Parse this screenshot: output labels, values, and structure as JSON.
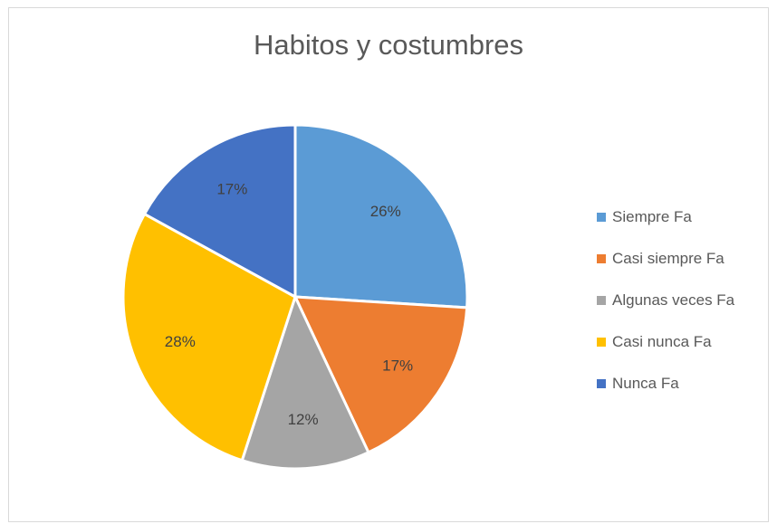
{
  "chart_data": {
    "type": "pie",
    "title": "Habitos y costumbres",
    "categories": [
      "Siempre Fa",
      "Casi siempre Fa",
      "Algunas veces Fa",
      "Casi nunca Fa",
      "Nunca Fa"
    ],
    "values": [
      26,
      17,
      12,
      28,
      17
    ],
    "value_labels": [
      "26%",
      "17%",
      "12%",
      "28%",
      "17%"
    ],
    "colors": [
      "#5b9bd5",
      "#ed7d31",
      "#a5a5a5",
      "#ffc000",
      "#4472c4"
    ],
    "legend_position": "right"
  }
}
